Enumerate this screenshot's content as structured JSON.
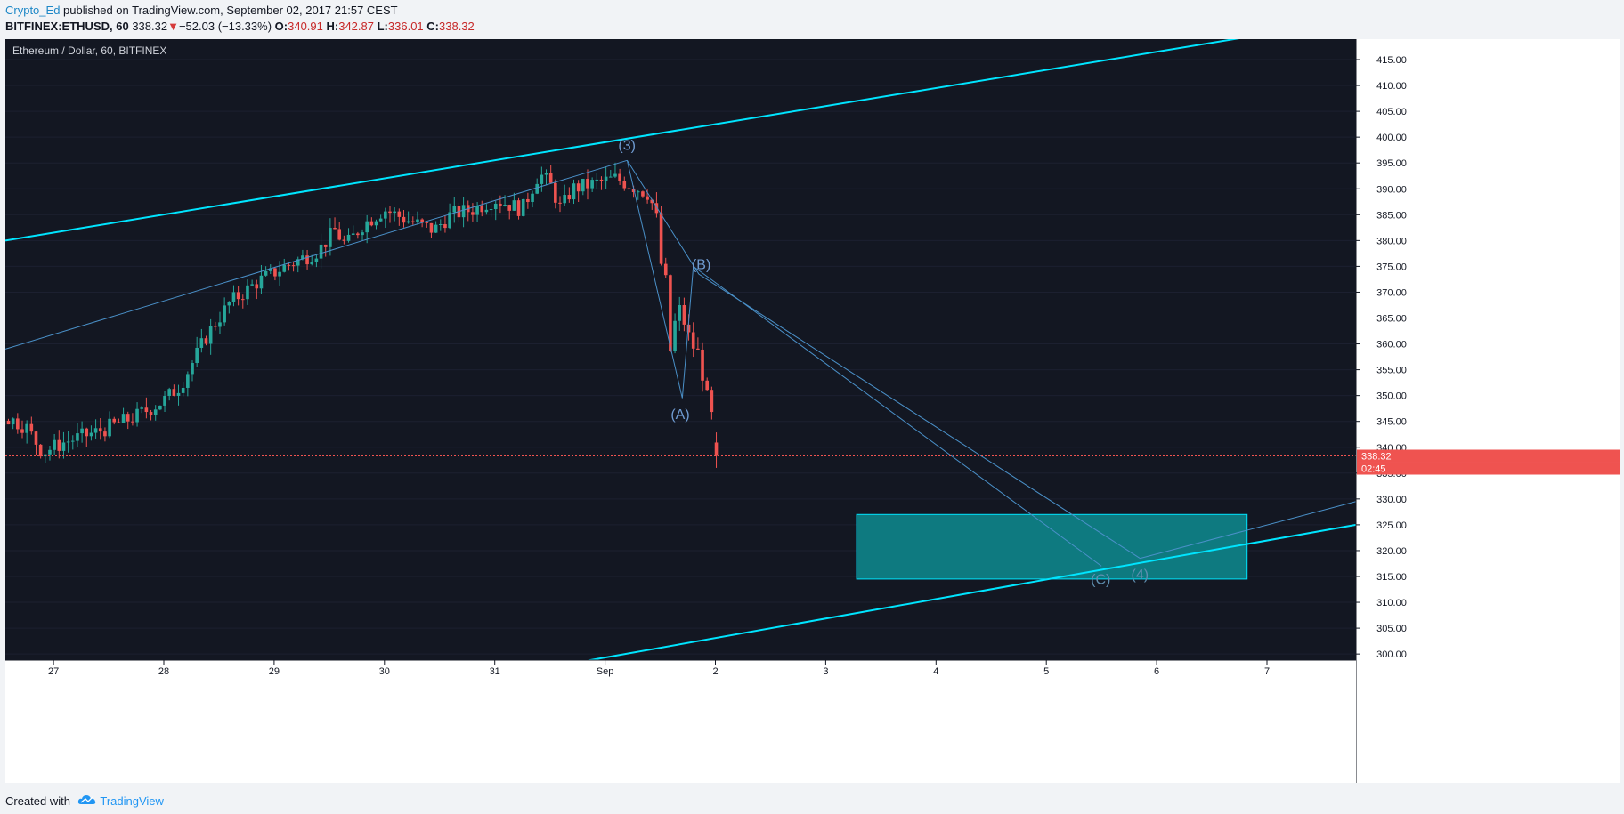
{
  "header": {
    "author": "Crypto_Ed",
    "published_text": " published on TradingView.com, September 02, 2017 21:57 CEST",
    "symbol": "BITFINEX:ETHUSD, 60",
    "last_price": "338.32",
    "change_arrow": "▼",
    "change": "−52.03 (−13.33%)",
    "open_label": "O:",
    "open": "340.91",
    "high_label": "H:",
    "high": "342.87",
    "low_label": "L:",
    "low": "336.01",
    "close_label": "C:",
    "close": "338.32"
  },
  "chart": {
    "title": "Ethereum / Dollar, 60, BITFINEX",
    "price_tag": "338.32",
    "countdown_tag": "02:45",
    "price_axis": [
      "415.00",
      "410.00",
      "405.00",
      "400.00",
      "395.00",
      "390.00",
      "385.00",
      "380.00",
      "375.00",
      "370.00",
      "365.00",
      "360.00",
      "355.00",
      "350.00",
      "345.00",
      "340.00",
      "335.00",
      "330.00",
      "325.00",
      "320.00",
      "315.00",
      "310.00",
      "305.00",
      "300.00"
    ],
    "time_axis": [
      "27",
      "28",
      "29",
      "30",
      "31",
      "Sep",
      "2",
      "3",
      "4",
      "5",
      "6",
      "7"
    ],
    "wave_labels": {
      "w3": "(3)",
      "wA": "(A)",
      "wB": "(B)",
      "wC": "(C)",
      "w4": "(4)"
    },
    "colors": {
      "background": "#131722",
      "up": "#26a69a",
      "down": "#ef5350",
      "trendline": "#00e5ff",
      "wave": "#4a90c8",
      "zone": "#0e7a80",
      "price_line": "#ef5350"
    }
  },
  "chart_data": {
    "type": "candlestick",
    "ylim": [
      298,
      420
    ],
    "x_range": [
      0,
      295
    ],
    "candles": []
  },
  "footer": {
    "created_with": "Created with",
    "brand": "TradingView"
  }
}
